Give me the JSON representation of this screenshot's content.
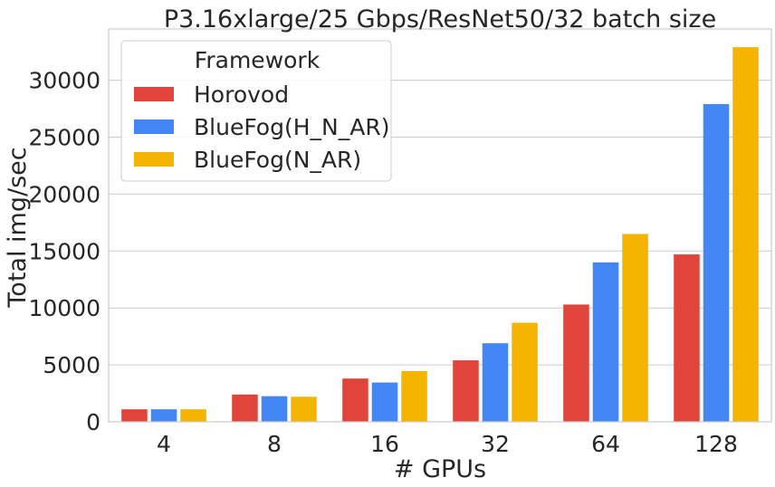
{
  "chart_data": {
    "type": "bar",
    "title": "P3.16xlarge/25 Gbps/ResNet50/32 batch size",
    "xlabel": "# GPUs",
    "ylabel": "Total img/sec",
    "categories": [
      "4",
      "8",
      "16",
      "32",
      "64",
      "128"
    ],
    "ylim": [
      0,
      34500
    ],
    "yticks": [
      0,
      5000,
      10000,
      15000,
      20000,
      25000,
      30000
    ],
    "grid": true,
    "legend": {
      "title": "Framework",
      "placement": "top-left"
    },
    "series": [
      {
        "name": "Horovod",
        "color": "#e0443a",
        "values": [
          1100,
          2400,
          3800,
          5400,
          10300,
          14700
        ]
      },
      {
        "name": "BlueFog(H_N_AR)",
        "color": "#4287f5",
        "values": [
          1100,
          2250,
          3450,
          6900,
          14000,
          27900
        ]
      },
      {
        "name": "BlueFog(N_AR)",
        "color": "#f5b400",
        "values": [
          1100,
          2200,
          4450,
          8700,
          16500,
          32900
        ]
      }
    ]
  }
}
